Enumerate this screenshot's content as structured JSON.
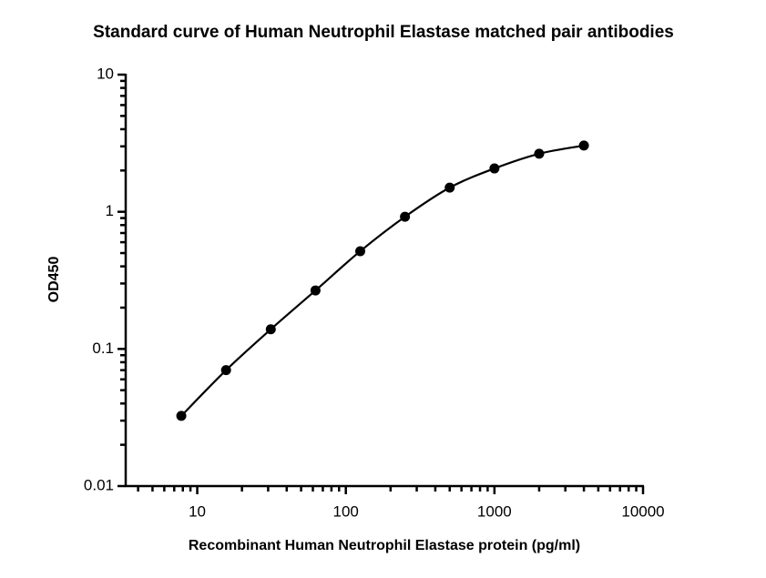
{
  "chart_data": {
    "type": "scatter",
    "title": "Standard curve of Human Neutrophil Elastase matched pair antibodies",
    "x_label": "Recombinant Human Neutrophil Elastase protein (pg/ml)",
    "y_label": "OD450",
    "x_scale": "log",
    "y_scale": "log",
    "xlim": [
      3.3,
      10000
    ],
    "ylim": [
      0.01,
      10
    ],
    "xticks": [
      10,
      100,
      1000,
      10000
    ],
    "yticks": [
      0.01,
      0.1,
      1,
      10
    ],
    "xminor_ticks": [
      4,
      5,
      6,
      7,
      8,
      9,
      20,
      30,
      40,
      50,
      60,
      70,
      80,
      90,
      200,
      300,
      400,
      500,
      600,
      700,
      800,
      900,
      2000,
      3000,
      4000,
      5000,
      6000,
      7000,
      8000,
      9000
    ],
    "yminor_ticks": [
      0.02,
      0.03,
      0.04,
      0.05,
      0.06,
      0.07,
      0.08,
      0.09,
      0.2,
      0.3,
      0.4,
      0.5,
      0.6,
      0.7,
      0.8,
      0.9,
      2,
      3,
      4,
      5,
      6,
      7,
      8,
      9
    ],
    "fit_line": true,
    "color": "#000000",
    "x": [
      7.8125,
      15.625,
      31.25,
      62.5,
      125,
      250,
      500,
      1000,
      2000,
      4000
    ],
    "values": [
      0.0325,
      0.07,
      0.139,
      0.267,
      0.516,
      0.92,
      1.5,
      2.07,
      2.65,
      3.04
    ]
  }
}
